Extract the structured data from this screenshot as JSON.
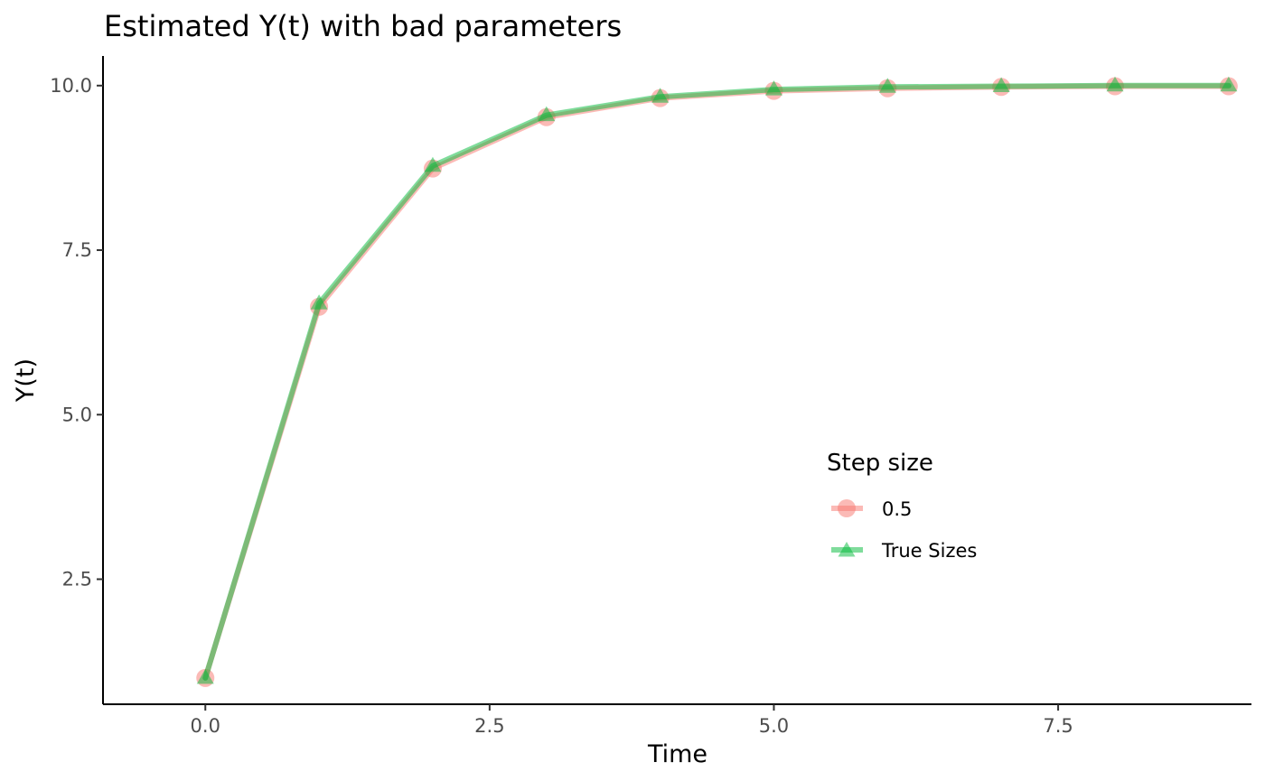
{
  "chart_data": {
    "type": "line",
    "title": "Estimated Y(t) with bad parameters",
    "xlabel": "Time",
    "ylabel": "Y(t)",
    "xlim": [
      -0.9,
      9.2
    ],
    "ylim": [
      0.6,
      10.45
    ],
    "x_ticks": [
      0.0,
      2.5,
      5.0,
      7.5
    ],
    "x_tick_labels": [
      "0.0",
      "2.5",
      "5.0",
      "7.5"
    ],
    "y_ticks": [
      2.5,
      5.0,
      7.5,
      10.0
    ],
    "y_tick_labels": [
      "2.5",
      "5.0",
      "7.5",
      "10.0"
    ],
    "grid": false,
    "legend": {
      "title": "Step size",
      "placement": "inside-right"
    },
    "x": [
      0,
      1,
      2,
      3,
      4,
      5,
      6,
      7,
      8,
      9
    ],
    "series": [
      {
        "name": "0.5",
        "marker": "circle",
        "color": "#f8766d",
        "values": [
          1.0,
          6.64,
          8.74,
          9.52,
          9.81,
          9.92,
          9.96,
          9.98,
          9.99,
          9.99
        ]
      },
      {
        "name": "True Sizes",
        "marker": "triangle",
        "color": "#00ba38",
        "values": [
          1.0,
          6.69,
          8.78,
          9.55,
          9.83,
          9.94,
          9.98,
          9.99,
          10.0,
          10.0
        ]
      }
    ]
  }
}
